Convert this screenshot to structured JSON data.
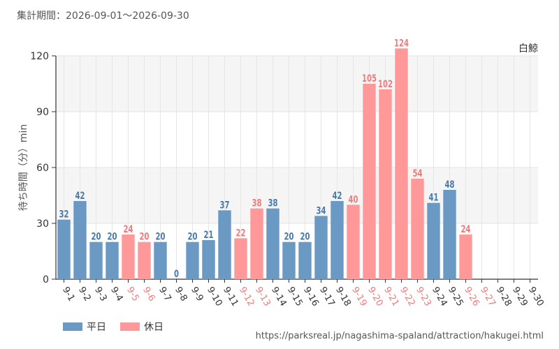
{
  "header": {
    "period_text": "集計期間：2026-09-01～2026-09-30"
  },
  "chart_data": {
    "type": "bar",
    "attraction": "白鯨",
    "ylabel": "待ち時間（分）min",
    "ylim": [
      0,
      120
    ],
    "yticks": [
      0,
      30,
      60,
      90,
      120
    ],
    "grid": true,
    "legend_position": "bottom-left",
    "categories": [
      "9-1",
      "9-2",
      "9-3",
      "9-4",
      "9-5",
      "9-6",
      "9-7",
      "9-8",
      "9-9",
      "9-10",
      "9-11",
      "9-12",
      "9-13",
      "9-14",
      "9-15",
      "9-16",
      "9-17",
      "9-18",
      "9-19",
      "9-20",
      "9-21",
      "9-22",
      "9-23",
      "9-24",
      "9-25",
      "9-26",
      "9-27",
      "9-28",
      "9-29",
      "9-30"
    ],
    "values": [
      32,
      42,
      20,
      20,
      24,
      20,
      20,
      0,
      20,
      21,
      37,
      22,
      38,
      38,
      20,
      20,
      34,
      42,
      40,
      105,
      102,
      124,
      54,
      41,
      48,
      24,
      null,
      null,
      null,
      null
    ],
    "day_types": [
      "weekday",
      "weekday",
      "weekday",
      "weekday",
      "holiday",
      "holiday",
      "weekday",
      "weekday",
      "weekday",
      "weekday",
      "weekday",
      "holiday",
      "holiday",
      "weekday",
      "weekday",
      "weekday",
      "weekday",
      "weekday",
      "holiday",
      "holiday",
      "holiday",
      "holiday",
      "holiday",
      "weekday",
      "weekday",
      "holiday",
      "holiday",
      "weekday",
      "weekday",
      "weekday"
    ],
    "series": [
      {
        "name": "平日",
        "key": "weekday",
        "color": "#6a9ac4",
        "label_color": "#4a7aa8"
      },
      {
        "name": "休日",
        "key": "holiday",
        "color": "#ff9999",
        "label_color": "#f07b7b"
      }
    ]
  },
  "footer": {
    "source_url": "https://parksreal.jp/nagashima-spaland/attraction/hakugei.html"
  }
}
